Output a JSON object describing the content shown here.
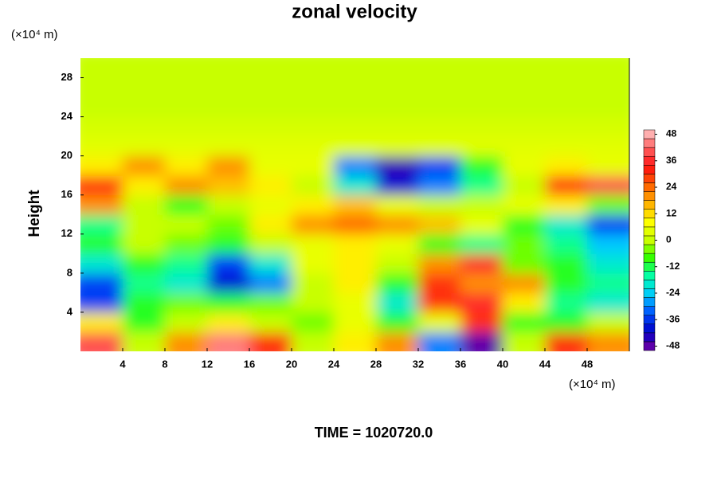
{
  "chart_data": {
    "type": "contour",
    "title": "zonal velocity",
    "y_unit": "(×10⁴ m)",
    "x_unit": "(×10⁴ m)",
    "ylabel": "Height",
    "footer": "TIME = 1020720.0",
    "xlim": [
      0,
      52
    ],
    "ylim": [
      0,
      30
    ],
    "xticks": [
      4,
      8,
      12,
      16,
      20,
      24,
      28,
      32,
      36,
      40,
      44,
      48
    ],
    "yticks": [
      4,
      8,
      12,
      16,
      20,
      24,
      28
    ],
    "x": [
      2,
      6,
      10,
      14,
      18,
      22,
      26,
      30,
      34,
      38,
      42,
      46,
      50
    ],
    "y": [
      1,
      3,
      5,
      7,
      9,
      11,
      13,
      15,
      17,
      19,
      21,
      23,
      25,
      27,
      29
    ],
    "z": [
      [
        40,
        0,
        20,
        44,
        30,
        0,
        10,
        20,
        -30,
        -48,
        0,
        30,
        20
      ],
      [
        10,
        -10,
        0,
        10,
        0,
        -5,
        5,
        -10,
        5,
        30,
        -10,
        -10,
        0
      ],
      [
        -35,
        -10,
        -5,
        -10,
        -5,
        0,
        5,
        -20,
        30,
        36,
        10,
        -15,
        -20
      ],
      [
        -35,
        -15,
        -20,
        -40,
        -30,
        0,
        10,
        -10,
        30,
        20,
        20,
        -10,
        -15
      ],
      [
        -20,
        -10,
        -15,
        -35,
        -20,
        5,
        10,
        0,
        20,
        36,
        -5,
        -10,
        -20
      ],
      [
        -10,
        0,
        -5,
        -10,
        0,
        5,
        10,
        5,
        -10,
        -15,
        -5,
        -15,
        -25
      ],
      [
        -15,
        0,
        0,
        -5,
        10,
        20,
        24,
        20,
        15,
        5,
        -10,
        -20,
        -35
      ],
      [
        20,
        0,
        -10,
        0,
        5,
        10,
        15,
        5,
        0,
        0,
        5,
        10,
        -5
      ],
      [
        30,
        10,
        20,
        15,
        10,
        0,
        -20,
        -40,
        -30,
        -15,
        0,
        30,
        40
      ],
      [
        10,
        20,
        10,
        20,
        5,
        5,
        -30,
        -45,
        -35,
        -10,
        5,
        10,
        5
      ],
      [
        4,
        4,
        4,
        4,
        4,
        4,
        4,
        4,
        4,
        4,
        4,
        4,
        4
      ],
      [
        2,
        2,
        2,
        2,
        2,
        2,
        2,
        2,
        2,
        2,
        2,
        2,
        2
      ],
      [
        0,
        0,
        0,
        0,
        0,
        0,
        0,
        0,
        0,
        0,
        0,
        0,
        0
      ],
      [
        0,
        0,
        0,
        0,
        0,
        0,
        0,
        0,
        0,
        0,
        0,
        0,
        0
      ],
      [
        0,
        0,
        0,
        0,
        0,
        0,
        0,
        0,
        0,
        0,
        0,
        0,
        0
      ]
    ],
    "clim": [
      -50,
      50
    ],
    "cticks": [
      48,
      36,
      24,
      12,
      0,
      -12,
      -24,
      -36,
      -48
    ],
    "colormap": [
      "#7a00a0",
      "#0000c8",
      "#0050ff",
      "#00c8ff",
      "#00ffb0",
      "#30ff00",
      "#c8ff00",
      "#ffff00",
      "#ffb000",
      "#ff6000",
      "#ff1010",
      "#ff6060",
      "#ffc8c8"
    ]
  }
}
